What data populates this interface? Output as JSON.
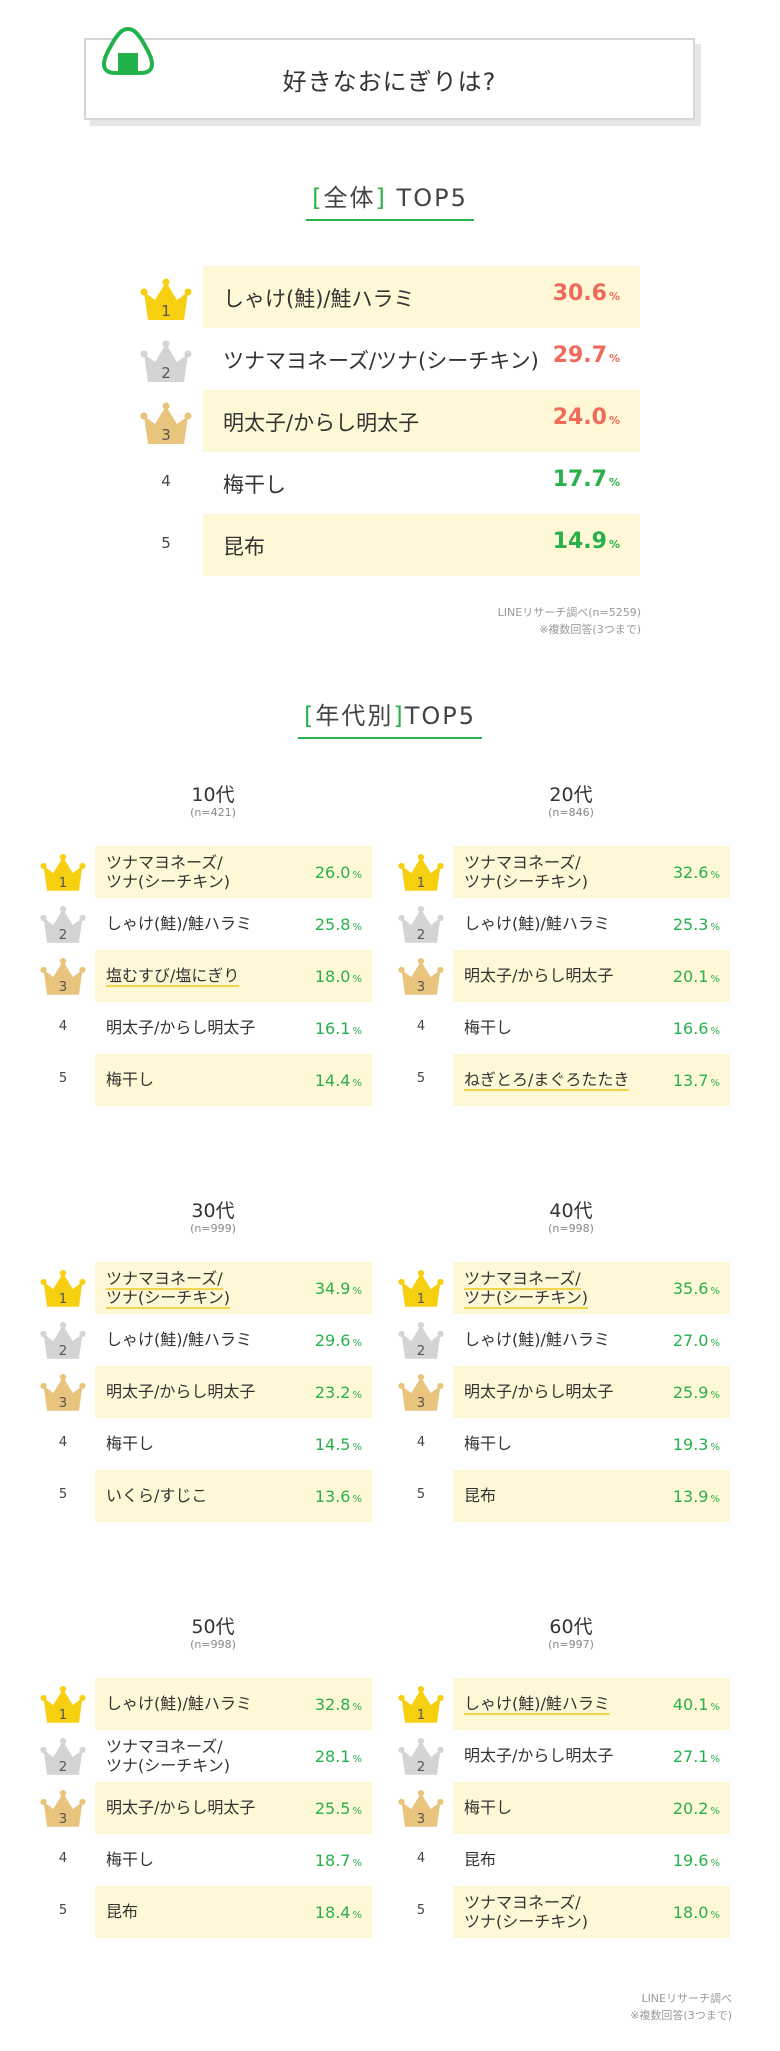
{
  "title": "好きなおにぎりは?",
  "overall": {
    "heading_bracket_open": "[",
    "heading_main": "全体",
    "heading_bracket_close": "]",
    "heading_suffix": "TOP5",
    "rows": [
      {
        "rank": "1",
        "label": "しゃけ(鮭)/鮭ハラミ",
        "pct": "30.6",
        "unit": "%"
      },
      {
        "rank": "2",
        "label": "ツナマヨネーズ/ツナ(シーチキン)",
        "pct": "29.7",
        "unit": "%"
      },
      {
        "rank": "3",
        "label": "明太子/からし明太子",
        "pct": "24.0",
        "unit": "%"
      },
      {
        "rank": "4",
        "label": "梅干し",
        "pct": "17.7",
        "unit": "%"
      },
      {
        "rank": "5",
        "label": "昆布",
        "pct": "14.9",
        "unit": "%"
      }
    ],
    "note_line1": "LINEリサーチ調べ(n=5259)",
    "note_line2": "※複数回答(3つまで)"
  },
  "by_age": {
    "heading_bracket_open": "[",
    "heading_main": "年代別",
    "heading_bracket_close": "]",
    "heading_suffix": "TOP5",
    "groups": [
      {
        "age": "10代",
        "n": "(n=421)",
        "rows": [
          {
            "rank": "1",
            "l1": "ツナマヨネーズ/",
            "l2": "ツナ(シーチキン)",
            "pct": "26.0",
            "unit": "%"
          },
          {
            "rank": "2",
            "l1": "しゃけ(鮭)/鮭ハラミ",
            "l2": "",
            "pct": "25.8",
            "unit": "%"
          },
          {
            "rank": "3",
            "l1": "塩むすび/塩にぎり",
            "l2": "",
            "pct": "18.0",
            "unit": "%"
          },
          {
            "rank": "4",
            "l1": "明太子/からし明太子",
            "l2": "",
            "pct": "16.1",
            "unit": "%"
          },
          {
            "rank": "5",
            "l1": "梅干し",
            "l2": "",
            "pct": "14.4",
            "unit": "%"
          }
        ]
      },
      {
        "age": "20代",
        "n": "(n=846)",
        "rows": [
          {
            "rank": "1",
            "l1": "ツナマヨネーズ/",
            "l2": "ツナ(シーチキン)",
            "pct": "32.6",
            "unit": "%"
          },
          {
            "rank": "2",
            "l1": "しゃけ(鮭)/鮭ハラミ",
            "l2": "",
            "pct": "25.3",
            "unit": "%"
          },
          {
            "rank": "3",
            "l1": "明太子/からし明太子",
            "l2": "",
            "pct": "20.1",
            "unit": "%"
          },
          {
            "rank": "4",
            "l1": "梅干し",
            "l2": "",
            "pct": "16.6",
            "unit": "%"
          },
          {
            "rank": "5",
            "l1": "ねぎとろ/まぐろたたき",
            "l2": "",
            "pct": "13.7",
            "unit": "%"
          }
        ]
      },
      {
        "age": "30代",
        "n": "(n=999)",
        "rows": [
          {
            "rank": "1",
            "l1": "ツナマヨネーズ/",
            "l2": "ツナ(シーチキン)",
            "pct": "34.9",
            "unit": "%"
          },
          {
            "rank": "2",
            "l1": "しゃけ(鮭)/鮭ハラミ",
            "l2": "",
            "pct": "29.6",
            "unit": "%"
          },
          {
            "rank": "3",
            "l1": "明太子/からし明太子",
            "l2": "",
            "pct": "23.2",
            "unit": "%"
          },
          {
            "rank": "4",
            "l1": "梅干し",
            "l2": "",
            "pct": "14.5",
            "unit": "%"
          },
          {
            "rank": "5",
            "l1": "いくら/すじこ",
            "l2": "",
            "pct": "13.6",
            "unit": "%"
          }
        ]
      },
      {
        "age": "40代",
        "n": "(n=998)",
        "rows": [
          {
            "rank": "1",
            "l1": "ツナマヨネーズ/",
            "l2": "ツナ(シーチキン)",
            "pct": "35.6",
            "unit": "%"
          },
          {
            "rank": "2",
            "l1": "しゃけ(鮭)/鮭ハラミ",
            "l2": "",
            "pct": "27.0",
            "unit": "%"
          },
          {
            "rank": "3",
            "l1": "明太子/からし明太子",
            "l2": "",
            "pct": "25.9",
            "unit": "%"
          },
          {
            "rank": "4",
            "l1": "梅干し",
            "l2": "",
            "pct": "19.3",
            "unit": "%"
          },
          {
            "rank": "5",
            "l1": "昆布",
            "l2": "",
            "pct": "13.9",
            "unit": "%"
          }
        ]
      },
      {
        "age": "50代",
        "n": "(n=998)",
        "rows": [
          {
            "rank": "1",
            "l1": "しゃけ(鮭)/鮭ハラミ",
            "l2": "",
            "pct": "32.8",
            "unit": "%"
          },
          {
            "rank": "2",
            "l1": "ツナマヨネーズ/",
            "l2": "ツナ(シーチキン)",
            "pct": "28.1",
            "unit": "%"
          },
          {
            "rank": "3",
            "l1": "明太子/からし明太子",
            "l2": "",
            "pct": "25.5",
            "unit": "%"
          },
          {
            "rank": "4",
            "l1": "梅干し",
            "l2": "",
            "pct": "18.7",
            "unit": "%"
          },
          {
            "rank": "5",
            "l1": "昆布",
            "l2": "",
            "pct": "18.4",
            "unit": "%"
          }
        ]
      },
      {
        "age": "60代",
        "n": "(n=997)",
        "rows": [
          {
            "rank": "1",
            "l1": "しゃけ(鮭)/鮭ハラミ",
            "l2": "",
            "pct": "40.1",
            "unit": "%"
          },
          {
            "rank": "2",
            "l1": "明太子/からし明太子",
            "l2": "",
            "pct": "27.1",
            "unit": "%"
          },
          {
            "rank": "3",
            "l1": "梅干し",
            "l2": "",
            "pct": "20.2",
            "unit": "%"
          },
          {
            "rank": "4",
            "l1": "昆布",
            "l2": "",
            "pct": "19.6",
            "unit": "%"
          },
          {
            "rank": "5",
            "l1": "ツナマヨネーズ/",
            "l2": "ツナ(シーチキン)",
            "pct": "18.0",
            "unit": "%"
          }
        ]
      }
    ],
    "note_line1": "LINEリサーチ調べ",
    "note_line2": "※複数回答(3つまで)"
  },
  "colors": {
    "accent_green": "#28b14a",
    "highlight_band": "#fff8d6",
    "top3_pct_red": "#ef6a5a",
    "gold": "#f5cf10",
    "silver": "#d4d4d4",
    "bronze": "#e9c47c"
  },
  "icons": {
    "title_icon": "onigiri-icon",
    "rank1": "gold-crown-icon",
    "rank2": "silver-crown-icon",
    "rank3": "bronze-crown-icon"
  }
}
